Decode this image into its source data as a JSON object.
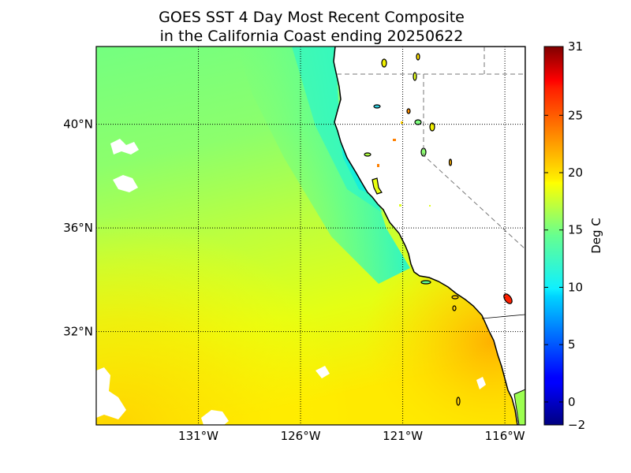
{
  "title_line1": "GOES SST 4 Day Most Recent Composite",
  "title_line2": "in the California Coast ending 20250622",
  "chart_data": {
    "type": "heatmap",
    "title": "GOES SST 4 Day Most Recent Composite in the California Coast ending 20250622",
    "variable_label": "Deg C",
    "colormap": "jet",
    "color_range": [
      -2,
      31
    ],
    "colorbar_ticks": [
      -2,
      0,
      5,
      10,
      15,
      20,
      25,
      31
    ],
    "colorbar_labels": [
      "−2",
      "0",
      "5",
      "10",
      "15",
      "20",
      "25",
      "31"
    ],
    "lon_range": [
      -136.0,
      -115.0
    ],
    "lat_range": [
      28.4,
      43.0
    ],
    "lon_ticks": [
      -131,
      -126,
      -121,
      -116
    ],
    "lon_labels": [
      "131°W",
      "126°W",
      "121°W",
      "116°W"
    ],
    "lat_ticks": [
      32,
      36,
      40
    ],
    "lat_labels": [
      "32°N",
      "36°N",
      "40°N"
    ],
    "grid": true,
    "approx_sst_regions": [
      {
        "region": "nearshore upwelling north of 37°N",
        "value": 12
      },
      {
        "region": "central offshore",
        "value": 15
      },
      {
        "region": "southwest offshore",
        "value": 19
      },
      {
        "region": "Southern California Bight",
        "value": 21
      }
    ]
  }
}
